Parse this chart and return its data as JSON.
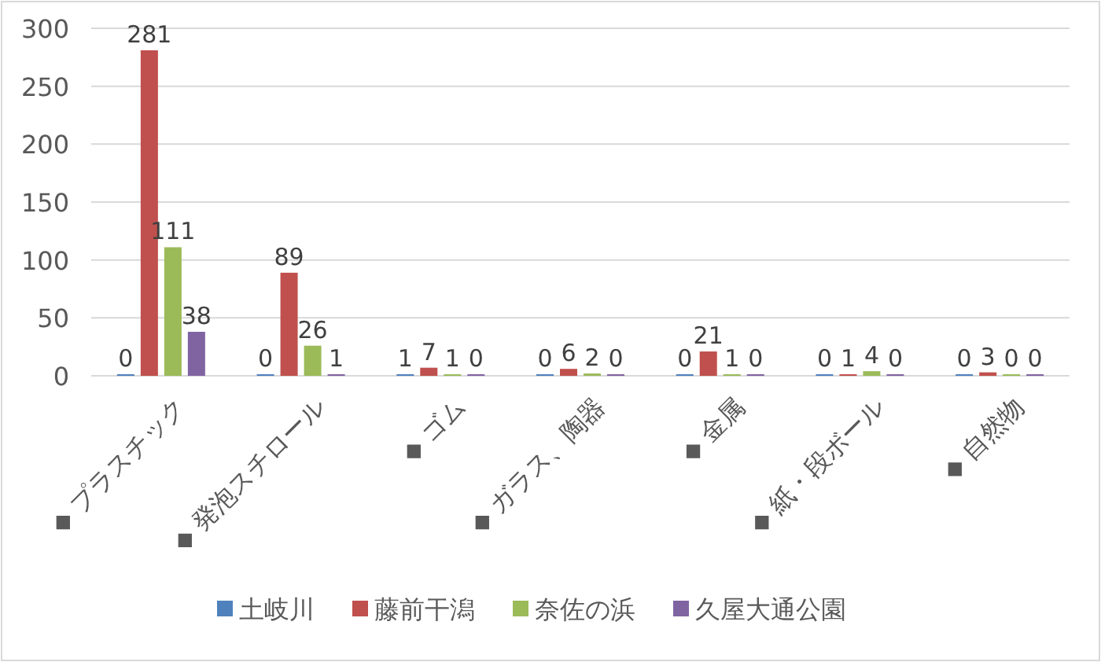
{
  "chart_data": {
    "type": "bar",
    "categories": [
      "◆ プラスチック",
      "◆ 発泡スチロール",
      "◆ ゴム",
      "◆ ガラス、陶器",
      "◆ 金属",
      "◆ 紙・段ボール",
      "◆ 自然物"
    ],
    "series": [
      {
        "name": "土岐川",
        "color": "#4f81bd",
        "values": [
          0,
          0,
          1,
          0,
          0,
          0,
          0
        ]
      },
      {
        "name": "藤前干潟",
        "color": "#c0504d",
        "values": [
          281,
          89,
          7,
          6,
          21,
          1,
          3
        ]
      },
      {
        "name": "奈佐の浜",
        "color": "#9bbb59",
        "values": [
          111,
          26,
          1,
          2,
          1,
          4,
          0
        ]
      },
      {
        "name": "久屋大通公園",
        "color": "#8064a2",
        "values": [
          38,
          1,
          0,
          0,
          0,
          0,
          0
        ]
      }
    ],
    "ylim": [
      0,
      300
    ],
    "yticks": [
      0,
      50,
      100,
      150,
      200,
      250,
      300
    ],
    "grid": "y",
    "data_labels": true,
    "legend": "bottom"
  }
}
